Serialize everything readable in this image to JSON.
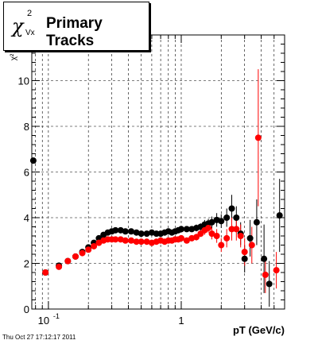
{
  "title": {
    "symbol": "χ",
    "superscript": "2",
    "subscript": "Vx",
    "text": "Primary Tracks"
  },
  "timestamp": "Thu Oct 27 17:12:17 2011",
  "chart_data": {
    "type": "scatter",
    "title": "Primary Tracks",
    "xlabel": "pT (GeV/c)",
    "ylabel": "χ²",
    "x_scale": "log",
    "xlim": [
      0.075,
      6.0
    ],
    "ylim": [
      0,
      12
    ],
    "grid": true,
    "x_tick_labels": [
      {
        "value": 0.1,
        "label": "10",
        "exp": "-1"
      },
      {
        "value": 1,
        "label": "1",
        "exp": ""
      }
    ],
    "y_ticks": [
      0,
      2,
      4,
      6,
      8,
      10
    ],
    "colors": {
      "black_series": "#000000",
      "red_series": "#ff0000",
      "grid": "#000000"
    },
    "series": [
      {
        "color": "#000000",
        "points": [
          [
            0.077,
            6.5,
            0.0
          ],
          [
            0.095,
            1.6,
            0.05
          ],
          [
            0.12,
            1.9,
            0.05
          ],
          [
            0.14,
            2.1,
            0.05
          ],
          [
            0.16,
            2.3,
            0.05
          ],
          [
            0.18,
            2.5,
            0.05
          ],
          [
            0.2,
            2.7,
            0.05
          ],
          [
            0.22,
            2.9,
            0.05
          ],
          [
            0.24,
            3.1,
            0.05
          ],
          [
            0.26,
            3.25,
            0.05
          ],
          [
            0.28,
            3.35,
            0.05
          ],
          [
            0.3,
            3.4,
            0.05
          ],
          [
            0.32,
            3.45,
            0.05
          ],
          [
            0.35,
            3.45,
            0.05
          ],
          [
            0.38,
            3.4,
            0.05
          ],
          [
            0.42,
            3.4,
            0.05
          ],
          [
            0.46,
            3.35,
            0.05
          ],
          [
            0.5,
            3.3,
            0.05
          ],
          [
            0.55,
            3.3,
            0.05
          ],
          [
            0.6,
            3.35,
            0.05
          ],
          [
            0.65,
            3.3,
            0.05
          ],
          [
            0.7,
            3.3,
            0.05
          ],
          [
            0.75,
            3.35,
            0.05
          ],
          [
            0.8,
            3.4,
            0.08
          ],
          [
            0.85,
            3.35,
            0.08
          ],
          [
            0.9,
            3.4,
            0.08
          ],
          [
            0.95,
            3.45,
            0.08
          ],
          [
            1.0,
            3.5,
            0.1
          ],
          [
            1.1,
            3.5,
            0.1
          ],
          [
            1.2,
            3.5,
            0.12
          ],
          [
            1.3,
            3.55,
            0.15
          ],
          [
            1.4,
            3.6,
            0.15
          ],
          [
            1.5,
            3.7,
            0.2
          ],
          [
            1.6,
            3.75,
            0.2
          ],
          [
            1.7,
            3.8,
            0.25
          ],
          [
            1.85,
            3.9,
            0.3
          ],
          [
            2.0,
            3.85,
            0.3
          ],
          [
            2.2,
            4.0,
            0.4
          ],
          [
            2.4,
            4.4,
            0.6
          ],
          [
            2.6,
            4.0,
            0.5
          ],
          [
            2.8,
            3.3,
            0.5
          ],
          [
            3.0,
            2.2,
            0.6
          ],
          [
            3.3,
            3.1,
            0.8
          ],
          [
            3.7,
            3.8,
            1.0
          ],
          [
            4.2,
            2.2,
            1.5
          ],
          [
            4.6,
            1.1,
            1.0
          ],
          [
            5.5,
            4.1,
            1.6
          ]
        ]
      },
      {
        "color": "#ff0000",
        "points": [
          [
            0.095,
            1.6,
            0.05
          ],
          [
            0.12,
            1.85,
            0.05
          ],
          [
            0.14,
            2.1,
            0.05
          ],
          [
            0.16,
            2.3,
            0.05
          ],
          [
            0.18,
            2.45,
            0.05
          ],
          [
            0.2,
            2.6,
            0.05
          ],
          [
            0.22,
            2.75,
            0.05
          ],
          [
            0.24,
            2.9,
            0.05
          ],
          [
            0.26,
            3.0,
            0.05
          ],
          [
            0.28,
            3.05,
            0.05
          ],
          [
            0.3,
            3.05,
            0.05
          ],
          [
            0.32,
            3.05,
            0.05
          ],
          [
            0.35,
            3.05,
            0.05
          ],
          [
            0.38,
            3.0,
            0.05
          ],
          [
            0.42,
            3.0,
            0.05
          ],
          [
            0.46,
            2.95,
            0.05
          ],
          [
            0.5,
            2.95,
            0.05
          ],
          [
            0.55,
            2.95,
            0.05
          ],
          [
            0.6,
            2.9,
            0.05
          ],
          [
            0.65,
            2.95,
            0.05
          ],
          [
            0.7,
            3.0,
            0.05
          ],
          [
            0.75,
            2.95,
            0.05
          ],
          [
            0.8,
            3.0,
            0.08
          ],
          [
            0.85,
            3.0,
            0.08
          ],
          [
            0.9,
            3.05,
            0.08
          ],
          [
            0.95,
            3.05,
            0.08
          ],
          [
            1.0,
            3.1,
            0.1
          ],
          [
            1.1,
            3.0,
            0.1
          ],
          [
            1.2,
            3.1,
            0.12
          ],
          [
            1.3,
            3.15,
            0.15
          ],
          [
            1.4,
            3.3,
            0.15
          ],
          [
            1.5,
            3.45,
            0.2
          ],
          [
            1.6,
            3.55,
            0.2
          ],
          [
            1.7,
            3.3,
            0.25
          ],
          [
            1.85,
            3.2,
            0.3
          ],
          [
            2.0,
            2.8,
            0.3
          ],
          [
            2.2,
            3.1,
            0.4
          ],
          [
            2.4,
            3.5,
            0.5
          ],
          [
            2.6,
            3.5,
            0.5
          ],
          [
            2.8,
            3.2,
            0.5
          ],
          [
            3.0,
            2.5,
            0.6
          ],
          [
            3.4,
            2.8,
            0.8
          ],
          [
            3.8,
            7.5,
            3.0
          ],
          [
            4.3,
            1.5,
            0.8
          ],
          [
            5.2,
            1.7,
            0.8
          ]
        ]
      }
    ]
  }
}
